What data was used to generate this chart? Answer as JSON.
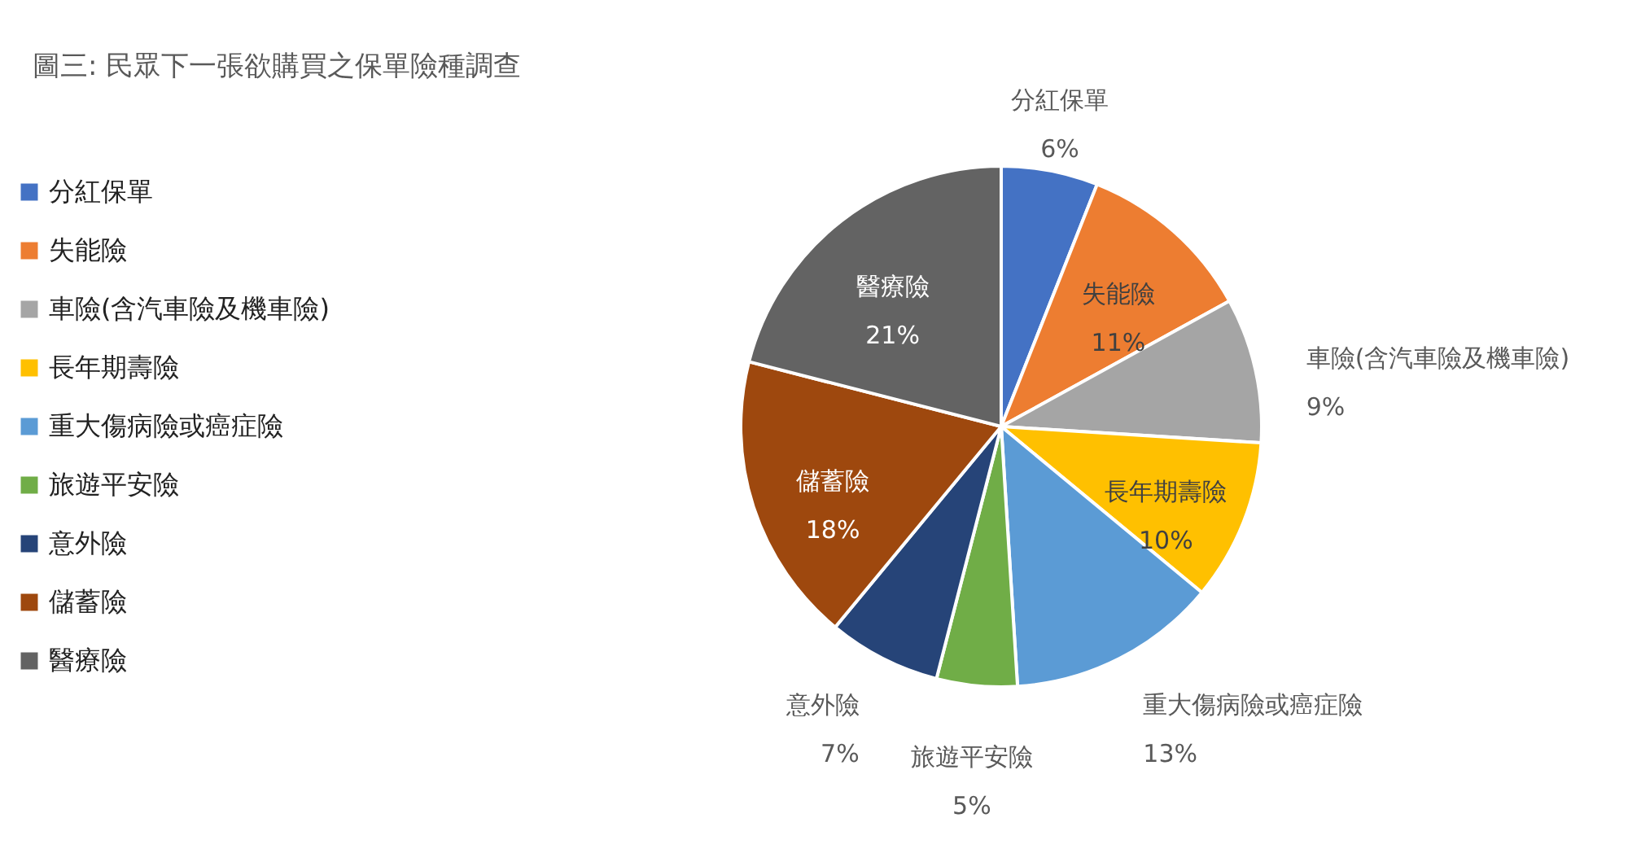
{
  "chart_data": {
    "type": "pie",
    "title": "圖三: 民眾下一張欲購買之保單險種調查",
    "categories": [
      "分紅保單",
      "失能險",
      "車險(含汽車險及機車險)",
      "長年期壽險",
      "重大傷病險或癌症險",
      "旅遊平安險",
      "意外險",
      "儲蓄險",
      "醫療險"
    ],
    "values": [
      6,
      11,
      9,
      10,
      13,
      5,
      7,
      18,
      21
    ],
    "colors": [
      "#4472c4",
      "#ed7d31",
      "#a5a5a5",
      "#ffc000",
      "#5b9bd5",
      "#70ad47",
      "#264478",
      "#9e480e",
      "#636363"
    ],
    "value_labels": [
      "6%",
      "11%",
      "9%",
      "10%",
      "13%",
      "5%",
      "7%",
      "18%",
      "21%"
    ],
    "legend": "left"
  }
}
